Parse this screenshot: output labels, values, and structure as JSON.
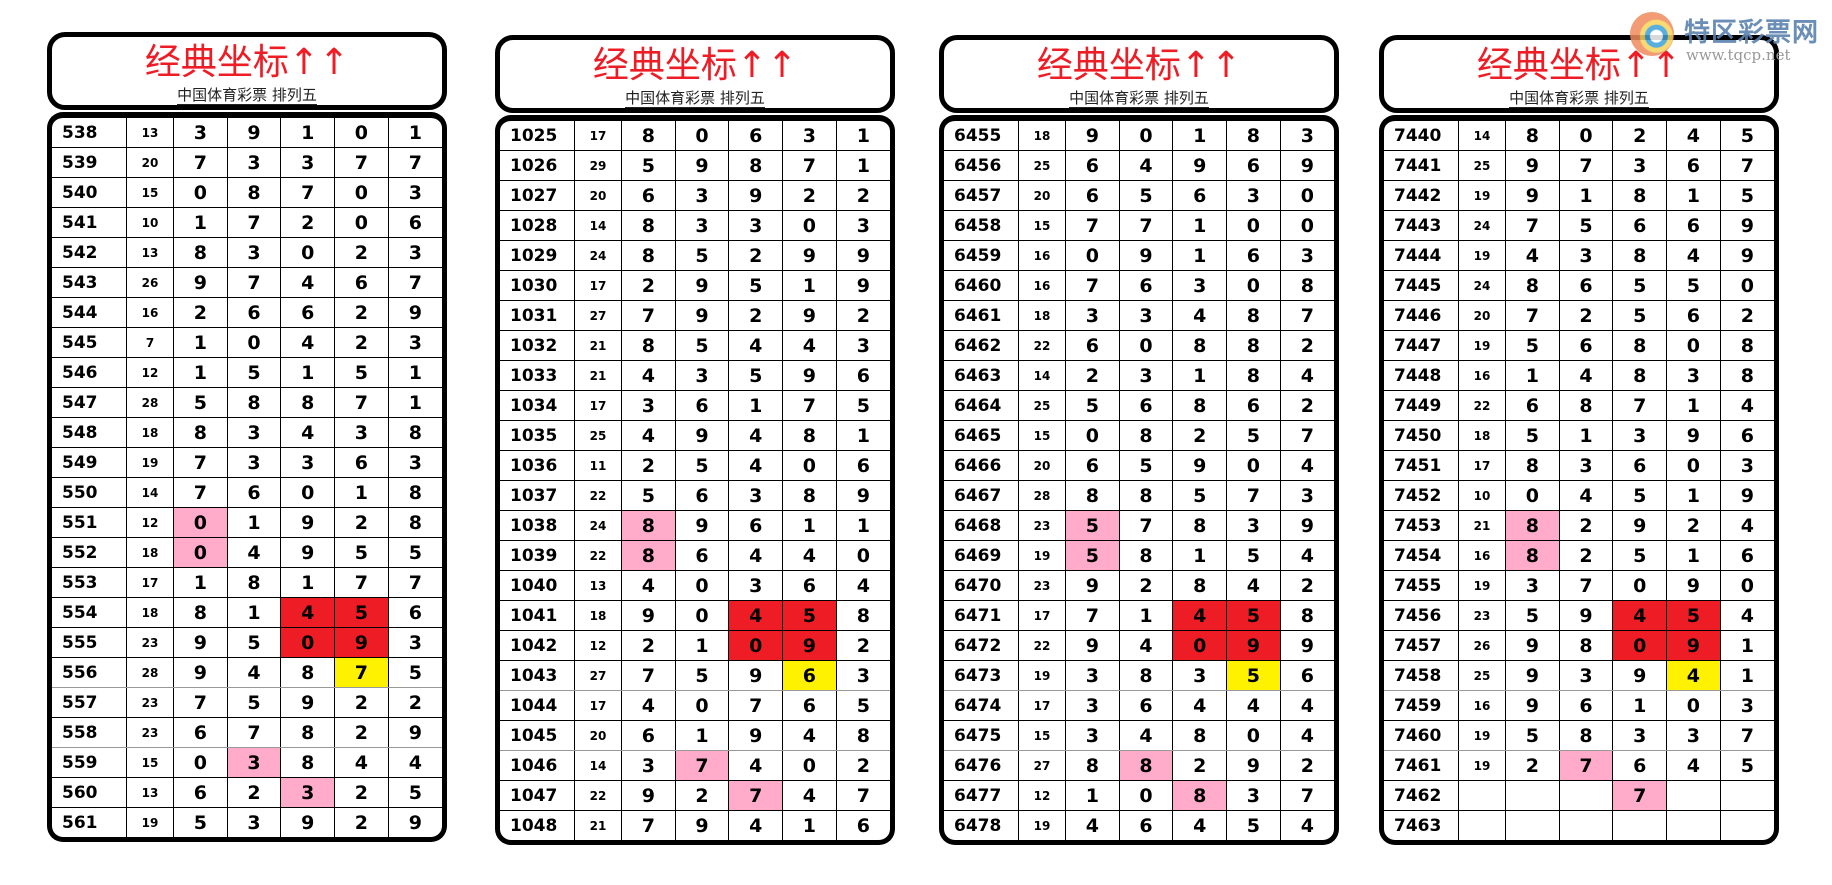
{
  "watermark": {
    "name": "特区彩票网",
    "url": "www.tqcp.net"
  },
  "colors": {
    "title": "#ee1c25",
    "pink": "#ffabc9",
    "red": "#ee1c25",
    "yellow": "#fff200"
  },
  "panels": [
    {
      "title": "经典坐标↑↑",
      "subtitle": "中国体育彩票 排列五",
      "rows": [
        [
          "538",
          "13",
          "3",
          "9",
          "1",
          "0",
          "1"
        ],
        [
          "539",
          "20",
          "7",
          "3",
          "3",
          "7",
          "7"
        ],
        [
          "540",
          "15",
          "0",
          "8",
          "7",
          "0",
          "3"
        ],
        [
          "541",
          "10",
          "1",
          "7",
          "2",
          "0",
          "6"
        ],
        [
          "542",
          "13",
          "8",
          "3",
          "0",
          "2",
          "3"
        ],
        [
          "543",
          "26",
          "9",
          "7",
          "4",
          "6",
          "7"
        ],
        [
          "544",
          "16",
          "2",
          "6",
          "6",
          "2",
          "9"
        ],
        [
          "545",
          "7",
          "1",
          "0",
          "4",
          "2",
          "3"
        ],
        [
          "546",
          "12",
          "1",
          "5",
          "1",
          "5",
          "1"
        ],
        [
          "547",
          "28",
          "5",
          "8",
          "8",
          "7",
          "1"
        ],
        [
          "548",
          "18",
          "8",
          "3",
          "4",
          "3",
          "8"
        ],
        [
          "549",
          "19",
          "7",
          "3",
          "3",
          "6",
          "3"
        ],
        [
          "550",
          "14",
          "7",
          "6",
          "0",
          "1",
          "8"
        ],
        [
          "551",
          "12",
          "0",
          "1",
          "9",
          "2",
          "8"
        ],
        [
          "552",
          "18",
          "0",
          "4",
          "9",
          "5",
          "5"
        ],
        [
          "553",
          "17",
          "1",
          "8",
          "1",
          "7",
          "7"
        ],
        [
          "554",
          "18",
          "8",
          "1",
          "4",
          "5",
          "6"
        ],
        [
          "555",
          "23",
          "9",
          "5",
          "0",
          "9",
          "3"
        ],
        [
          "556",
          "28",
          "9",
          "4",
          "8",
          "7",
          "5"
        ],
        [
          "557",
          "23",
          "7",
          "5",
          "9",
          "2",
          "2"
        ],
        [
          "558",
          "23",
          "6",
          "7",
          "8",
          "2",
          "9"
        ],
        [
          "559",
          "15",
          "0",
          "3",
          "8",
          "4",
          "4"
        ],
        [
          "560",
          "13",
          "6",
          "2",
          "3",
          "2",
          "5"
        ],
        [
          "561",
          "19",
          "5",
          "3",
          "9",
          "2",
          "9"
        ]
      ],
      "highlights": [
        {
          "row": 13,
          "col": 0,
          "color": "pink"
        },
        {
          "row": 14,
          "col": 0,
          "color": "pink"
        },
        {
          "row": 16,
          "col": 2,
          "color": "red"
        },
        {
          "row": 16,
          "col": 3,
          "color": "red"
        },
        {
          "row": 17,
          "col": 2,
          "color": "red"
        },
        {
          "row": 17,
          "col": 3,
          "color": "red"
        },
        {
          "row": 18,
          "col": 3,
          "color": "yellow"
        },
        {
          "row": 21,
          "col": 1,
          "color": "pink"
        },
        {
          "row": 22,
          "col": 2,
          "color": "pink"
        }
      ]
    },
    {
      "title": "经典坐标↑↑",
      "subtitle": "中国体育彩票 排列五",
      "rows": [
        [
          "1025",
          "17",
          "8",
          "0",
          "6",
          "3",
          "1"
        ],
        [
          "1026",
          "29",
          "5",
          "9",
          "8",
          "7",
          "1"
        ],
        [
          "1027",
          "20",
          "6",
          "3",
          "9",
          "2",
          "2"
        ],
        [
          "1028",
          "14",
          "8",
          "3",
          "3",
          "0",
          "3"
        ],
        [
          "1029",
          "24",
          "8",
          "5",
          "2",
          "9",
          "9"
        ],
        [
          "1030",
          "17",
          "2",
          "9",
          "5",
          "1",
          "9"
        ],
        [
          "1031",
          "27",
          "7",
          "9",
          "2",
          "9",
          "2"
        ],
        [
          "1032",
          "21",
          "8",
          "5",
          "4",
          "4",
          "3"
        ],
        [
          "1033",
          "21",
          "4",
          "3",
          "5",
          "9",
          "6"
        ],
        [
          "1034",
          "17",
          "3",
          "6",
          "1",
          "7",
          "5"
        ],
        [
          "1035",
          "25",
          "4",
          "9",
          "4",
          "8",
          "1"
        ],
        [
          "1036",
          "11",
          "2",
          "5",
          "4",
          "0",
          "6"
        ],
        [
          "1037",
          "22",
          "5",
          "6",
          "3",
          "8",
          "9"
        ],
        [
          "1038",
          "24",
          "8",
          "9",
          "6",
          "1",
          "1"
        ],
        [
          "1039",
          "22",
          "8",
          "6",
          "4",
          "4",
          "0"
        ],
        [
          "1040",
          "13",
          "4",
          "0",
          "3",
          "6",
          "4"
        ],
        [
          "1041",
          "18",
          "9",
          "0",
          "4",
          "5",
          "8"
        ],
        [
          "1042",
          "12",
          "2",
          "1",
          "0",
          "9",
          "2"
        ],
        [
          "1043",
          "27",
          "7",
          "5",
          "9",
          "6",
          "3"
        ],
        [
          "1044",
          "17",
          "4",
          "0",
          "7",
          "6",
          "5"
        ],
        [
          "1045",
          "20",
          "6",
          "1",
          "9",
          "4",
          "8"
        ],
        [
          "1046",
          "14",
          "3",
          "7",
          "4",
          "0",
          "2"
        ],
        [
          "1047",
          "22",
          "9",
          "2",
          "7",
          "4",
          "7"
        ],
        [
          "1048",
          "21",
          "7",
          "9",
          "4",
          "1",
          "6"
        ]
      ],
      "highlights": [
        {
          "row": 13,
          "col": 0,
          "color": "pink"
        },
        {
          "row": 14,
          "col": 0,
          "color": "pink"
        },
        {
          "row": 16,
          "col": 2,
          "color": "red"
        },
        {
          "row": 16,
          "col": 3,
          "color": "red"
        },
        {
          "row": 17,
          "col": 2,
          "color": "red"
        },
        {
          "row": 17,
          "col": 3,
          "color": "red"
        },
        {
          "row": 18,
          "col": 3,
          "color": "yellow"
        },
        {
          "row": 21,
          "col": 1,
          "color": "pink"
        },
        {
          "row": 22,
          "col": 2,
          "color": "pink"
        }
      ]
    },
    {
      "title": "经典坐标↑↑",
      "subtitle": "中国体育彩票 排列五",
      "rows": [
        [
          "6455",
          "18",
          "9",
          "0",
          "1",
          "8",
          "3"
        ],
        [
          "6456",
          "25",
          "6",
          "4",
          "9",
          "6",
          "9"
        ],
        [
          "6457",
          "20",
          "6",
          "5",
          "6",
          "3",
          "0"
        ],
        [
          "6458",
          "15",
          "7",
          "7",
          "1",
          "0",
          "0"
        ],
        [
          "6459",
          "16",
          "0",
          "9",
          "1",
          "6",
          "3"
        ],
        [
          "6460",
          "16",
          "7",
          "6",
          "3",
          "0",
          "8"
        ],
        [
          "6461",
          "18",
          "3",
          "3",
          "4",
          "8",
          "7"
        ],
        [
          "6462",
          "22",
          "6",
          "0",
          "8",
          "8",
          "2"
        ],
        [
          "6463",
          "14",
          "2",
          "3",
          "1",
          "8",
          "4"
        ],
        [
          "6464",
          "25",
          "5",
          "6",
          "8",
          "6",
          "2"
        ],
        [
          "6465",
          "15",
          "0",
          "8",
          "2",
          "5",
          "7"
        ],
        [
          "6466",
          "20",
          "6",
          "5",
          "9",
          "0",
          "4"
        ],
        [
          "6467",
          "28",
          "8",
          "8",
          "5",
          "7",
          "3"
        ],
        [
          "6468",
          "23",
          "5",
          "7",
          "8",
          "3",
          "9"
        ],
        [
          "6469",
          "19",
          "5",
          "8",
          "1",
          "5",
          "4"
        ],
        [
          "6470",
          "23",
          "9",
          "2",
          "8",
          "4",
          "2"
        ],
        [
          "6471",
          "17",
          "7",
          "1",
          "4",
          "5",
          "8"
        ],
        [
          "6472",
          "22",
          "9",
          "4",
          "0",
          "9",
          "9"
        ],
        [
          "6473",
          "19",
          "3",
          "8",
          "3",
          "5",
          "6"
        ],
        [
          "6474",
          "17",
          "3",
          "6",
          "4",
          "4",
          "4"
        ],
        [
          "6475",
          "15",
          "3",
          "4",
          "8",
          "0",
          "4"
        ],
        [
          "6476",
          "27",
          "8",
          "8",
          "2",
          "9",
          "2"
        ],
        [
          "6477",
          "12",
          "1",
          "0",
          "8",
          "3",
          "7"
        ],
        [
          "6478",
          "19",
          "4",
          "6",
          "4",
          "5",
          "4"
        ]
      ],
      "highlights": [
        {
          "row": 13,
          "col": 0,
          "color": "pink"
        },
        {
          "row": 14,
          "col": 0,
          "color": "pink"
        },
        {
          "row": 16,
          "col": 2,
          "color": "red"
        },
        {
          "row": 16,
          "col": 3,
          "color": "red"
        },
        {
          "row": 17,
          "col": 2,
          "color": "red"
        },
        {
          "row": 17,
          "col": 3,
          "color": "red"
        },
        {
          "row": 18,
          "col": 3,
          "color": "yellow"
        },
        {
          "row": 21,
          "col": 1,
          "color": "pink"
        },
        {
          "row": 22,
          "col": 2,
          "color": "pink"
        }
      ]
    },
    {
      "title": "经典坐标↑↑",
      "subtitle": "中国体育彩票 排列五",
      "rows": [
        [
          "7440",
          "14",
          "8",
          "0",
          "2",
          "4",
          "5"
        ],
        [
          "7441",
          "25",
          "9",
          "7",
          "3",
          "6",
          "7"
        ],
        [
          "7442",
          "19",
          "9",
          "1",
          "8",
          "1",
          "5"
        ],
        [
          "7443",
          "24",
          "7",
          "5",
          "6",
          "6",
          "9"
        ],
        [
          "7444",
          "19",
          "4",
          "3",
          "8",
          "4",
          "9"
        ],
        [
          "7445",
          "24",
          "8",
          "6",
          "5",
          "5",
          "0"
        ],
        [
          "7446",
          "20",
          "7",
          "2",
          "5",
          "6",
          "2"
        ],
        [
          "7447",
          "19",
          "5",
          "6",
          "8",
          "0",
          "8"
        ],
        [
          "7448",
          "16",
          "1",
          "4",
          "8",
          "3",
          "8"
        ],
        [
          "7449",
          "22",
          "6",
          "8",
          "7",
          "1",
          "4"
        ],
        [
          "7450",
          "18",
          "5",
          "1",
          "3",
          "9",
          "6"
        ],
        [
          "7451",
          "17",
          "8",
          "3",
          "6",
          "0",
          "3"
        ],
        [
          "7452",
          "10",
          "0",
          "4",
          "5",
          "1",
          "9"
        ],
        [
          "7453",
          "21",
          "8",
          "2",
          "9",
          "2",
          "4"
        ],
        [
          "7454",
          "16",
          "8",
          "2",
          "5",
          "1",
          "6"
        ],
        [
          "7455",
          "19",
          "3",
          "7",
          "0",
          "9",
          "0"
        ],
        [
          "7456",
          "23",
          "5",
          "9",
          "4",
          "5",
          "4"
        ],
        [
          "7457",
          "26",
          "9",
          "8",
          "0",
          "9",
          "1"
        ],
        [
          "7458",
          "25",
          "9",
          "3",
          "9",
          "4",
          "1"
        ],
        [
          "7459",
          "16",
          "9",
          "6",
          "1",
          "0",
          "3"
        ],
        [
          "7460",
          "19",
          "5",
          "8",
          "3",
          "3",
          "7"
        ],
        [
          "7461",
          "19",
          "2",
          "7",
          "6",
          "4",
          "5"
        ],
        [
          "7462",
          "",
          "",
          "",
          "7",
          "",
          ""
        ],
        [
          "7463",
          "",
          "",
          "",
          "",
          "",
          ""
        ]
      ],
      "highlights": [
        {
          "row": 13,
          "col": 0,
          "color": "pink"
        },
        {
          "row": 14,
          "col": 0,
          "color": "pink"
        },
        {
          "row": 16,
          "col": 2,
          "color": "red"
        },
        {
          "row": 16,
          "col": 3,
          "color": "red"
        },
        {
          "row": 17,
          "col": 2,
          "color": "red"
        },
        {
          "row": 17,
          "col": 3,
          "color": "red"
        },
        {
          "row": 18,
          "col": 3,
          "color": "yellow"
        },
        {
          "row": 21,
          "col": 1,
          "color": "pink"
        },
        {
          "row": 22,
          "col": 2,
          "color": "pink"
        }
      ]
    }
  ]
}
